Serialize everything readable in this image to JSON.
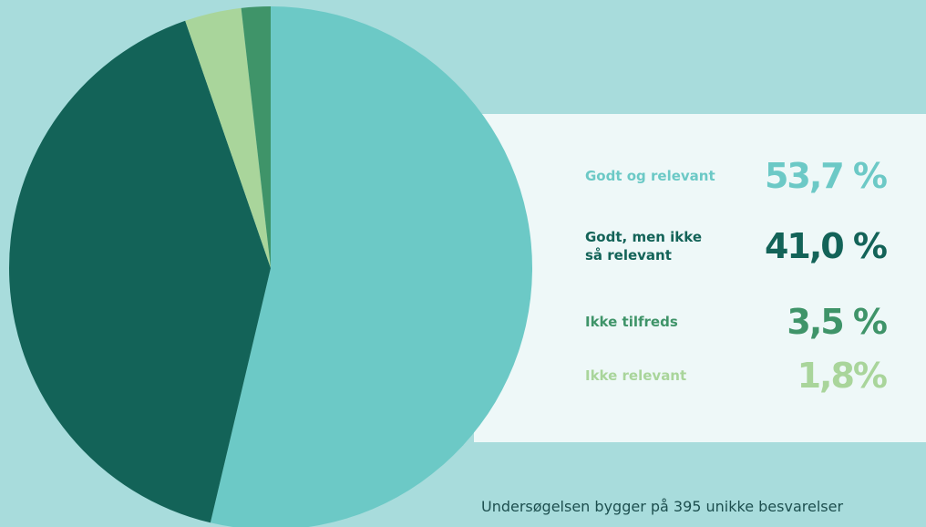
{
  "chart_data": {
    "type": "pie",
    "categories": [
      "Godt og relevant",
      "Godt, men ikke så relevant",
      "Ikke tilfreds",
      "Ikke relevant"
    ],
    "values": [
      53.7,
      41.0,
      3.5,
      1.8
    ],
    "value_labels": [
      "53,7 %",
      "41,0 %",
      "3,5 %",
      "1,8%"
    ],
    "colors": [
      "#6cc9c6",
      "#136358",
      "#a9d59b",
      "#3f9469"
    ],
    "label_colors": [
      "#6cc9c6",
      "#136358",
      "#3f9469",
      "#a9d59b"
    ],
    "note": "Undersøgelsen bygger på 395 unikke besvarelser"
  }
}
